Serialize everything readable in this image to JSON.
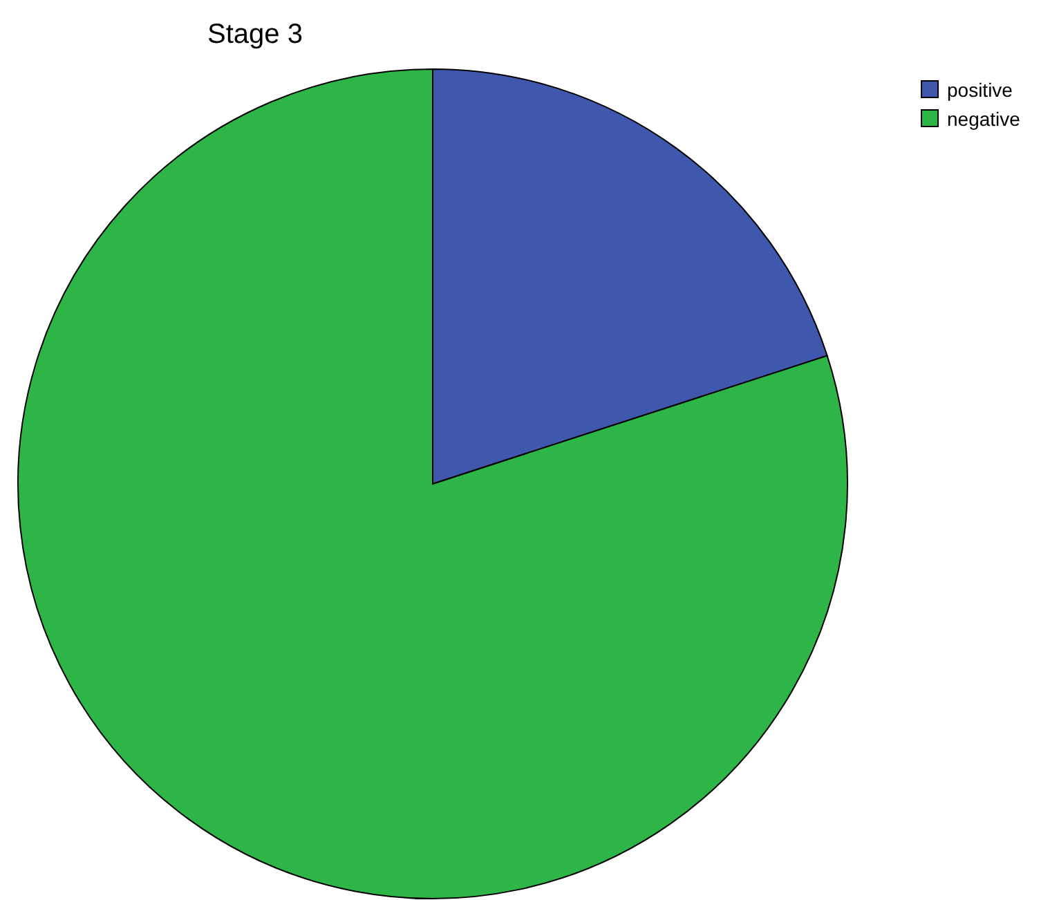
{
  "chart_data": {
    "type": "pie",
    "title": "Stage 3",
    "categories": [
      "positive",
      "negative"
    ],
    "values": [
      20,
      80
    ],
    "colors": [
      "#3f58ad",
      "#2eb548"
    ],
    "legend": "top right"
  }
}
